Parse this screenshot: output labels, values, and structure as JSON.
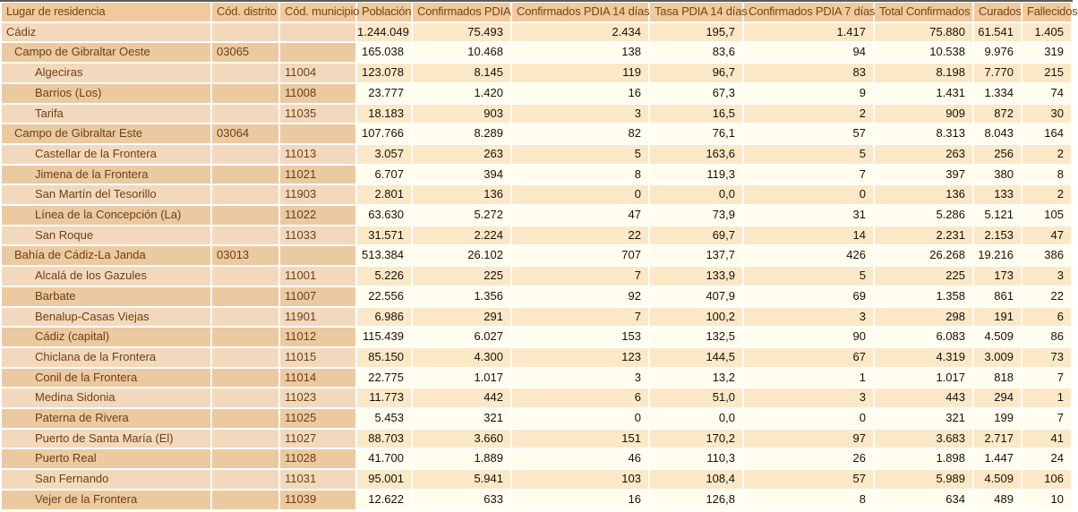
{
  "colors": {
    "top_border": "#5b5b58",
    "header_bg": "#f0ca9e",
    "header_text": "#774412",
    "label_row_dark": "#ebc9a1",
    "label_row_light": "#f2d9bd",
    "data_row_cream": "#fffdee",
    "data_row_peach": "#fae8c7",
    "label_text": "#6f3f14",
    "number_text": "#191008",
    "grid_white": "#ffffff"
  },
  "table": {
    "columns": [
      {
        "label": "Lugar de residencia"
      },
      {
        "label": "Cód. distrito"
      },
      {
        "label": "Cód. municipio"
      },
      {
        "label": "Población"
      },
      {
        "label": "Confirmados PDIA"
      },
      {
        "label": "Confirmados PDIA 14 días"
      },
      {
        "label": "Tasa PDIA 14 días"
      },
      {
        "label": "Confirmados PDIA 7 días"
      },
      {
        "label": "Total Confirmados"
      },
      {
        "label": "Curados"
      },
      {
        "label": "Fallecidos"
      }
    ],
    "rows": [
      {
        "name": "Cádiz",
        "indent": 0,
        "cod_distrito": "",
        "cod_municipio": "",
        "poblacion": "1.244.049",
        "confirmados_pdia": "75.493",
        "confirmados_pdia_14": "2.434",
        "tasa_pdia_14": "195,7",
        "confirmados_pdia_7": "1.417",
        "total_confirmados": "75.880",
        "curados": "61.541",
        "fallecidos": "1.405"
      },
      {
        "name": "Campo de Gibraltar Oeste",
        "indent": 1,
        "cod_distrito": "03065",
        "cod_municipio": "",
        "poblacion": "165.038",
        "confirmados_pdia": "10.468",
        "confirmados_pdia_14": "138",
        "tasa_pdia_14": "83,6",
        "confirmados_pdia_7": "94",
        "total_confirmados": "10.538",
        "curados": "9.976",
        "fallecidos": "319"
      },
      {
        "name": "Algeciras",
        "indent": 2,
        "cod_distrito": "",
        "cod_municipio": "11004",
        "poblacion": "123.078",
        "confirmados_pdia": "8.145",
        "confirmados_pdia_14": "119",
        "tasa_pdia_14": "96,7",
        "confirmados_pdia_7": "83",
        "total_confirmados": "8.198",
        "curados": "7.770",
        "fallecidos": "215"
      },
      {
        "name": "Barrios (Los)",
        "indent": 2,
        "cod_distrito": "",
        "cod_municipio": "11008",
        "poblacion": "23.777",
        "confirmados_pdia": "1.420",
        "confirmados_pdia_14": "16",
        "tasa_pdia_14": "67,3",
        "confirmados_pdia_7": "9",
        "total_confirmados": "1.431",
        "curados": "1.334",
        "fallecidos": "74"
      },
      {
        "name": "Tarifa",
        "indent": 2,
        "cod_distrito": "",
        "cod_municipio": "11035",
        "poblacion": "18.183",
        "confirmados_pdia": "903",
        "confirmados_pdia_14": "3",
        "tasa_pdia_14": "16,5",
        "confirmados_pdia_7": "2",
        "total_confirmados": "909",
        "curados": "872",
        "fallecidos": "30"
      },
      {
        "name": "Campo de Gibraltar Este",
        "indent": 1,
        "cod_distrito": "03064",
        "cod_municipio": "",
        "poblacion": "107.766",
        "confirmados_pdia": "8.289",
        "confirmados_pdia_14": "82",
        "tasa_pdia_14": "76,1",
        "confirmados_pdia_7": "57",
        "total_confirmados": "8.313",
        "curados": "8.043",
        "fallecidos": "164"
      },
      {
        "name": "Castellar de la Frontera",
        "indent": 2,
        "cod_distrito": "",
        "cod_municipio": "11013",
        "poblacion": "3.057",
        "confirmados_pdia": "263",
        "confirmados_pdia_14": "5",
        "tasa_pdia_14": "163,6",
        "confirmados_pdia_7": "5",
        "total_confirmados": "263",
        "curados": "256",
        "fallecidos": "2"
      },
      {
        "name": "Jimena de la Frontera",
        "indent": 2,
        "cod_distrito": "",
        "cod_municipio": "11021",
        "poblacion": "6.707",
        "confirmados_pdia": "394",
        "confirmados_pdia_14": "8",
        "tasa_pdia_14": "119,3",
        "confirmados_pdia_7": "7",
        "total_confirmados": "397",
        "curados": "380",
        "fallecidos": "8"
      },
      {
        "name": "San Martín del Tesorillo",
        "indent": 2,
        "cod_distrito": "",
        "cod_municipio": "11903",
        "poblacion": "2.801",
        "confirmados_pdia": "136",
        "confirmados_pdia_14": "0",
        "tasa_pdia_14": "0,0",
        "confirmados_pdia_7": "0",
        "total_confirmados": "136",
        "curados": "133",
        "fallecidos": "2"
      },
      {
        "name": "Línea de la Concepción (La)",
        "indent": 2,
        "cod_distrito": "",
        "cod_municipio": "11022",
        "poblacion": "63.630",
        "confirmados_pdia": "5.272",
        "confirmados_pdia_14": "47",
        "tasa_pdia_14": "73,9",
        "confirmados_pdia_7": "31",
        "total_confirmados": "5.286",
        "curados": "5.121",
        "fallecidos": "105"
      },
      {
        "name": "San Roque",
        "indent": 2,
        "cod_distrito": "",
        "cod_municipio": "11033",
        "poblacion": "31.571",
        "confirmados_pdia": "2.224",
        "confirmados_pdia_14": "22",
        "tasa_pdia_14": "69,7",
        "confirmados_pdia_7": "14",
        "total_confirmados": "2.231",
        "curados": "2.153",
        "fallecidos": "47"
      },
      {
        "name": "Bahía de Cádiz-La Janda",
        "indent": 1,
        "cod_distrito": "03013",
        "cod_municipio": "",
        "poblacion": "513.384",
        "confirmados_pdia": "26.102",
        "confirmados_pdia_14": "707",
        "tasa_pdia_14": "137,7",
        "confirmados_pdia_7": "426",
        "total_confirmados": "26.268",
        "curados": "19.216",
        "fallecidos": "386"
      },
      {
        "name": "Alcalá de los Gazules",
        "indent": 2,
        "cod_distrito": "",
        "cod_municipio": "11001",
        "poblacion": "5.226",
        "confirmados_pdia": "225",
        "confirmados_pdia_14": "7",
        "tasa_pdia_14": "133,9",
        "confirmados_pdia_7": "5",
        "total_confirmados": "225",
        "curados": "173",
        "fallecidos": "3"
      },
      {
        "name": "Barbate",
        "indent": 2,
        "cod_distrito": "",
        "cod_municipio": "11007",
        "poblacion": "22.556",
        "confirmados_pdia": "1.356",
        "confirmados_pdia_14": "92",
        "tasa_pdia_14": "407,9",
        "confirmados_pdia_7": "69",
        "total_confirmados": "1.358",
        "curados": "861",
        "fallecidos": "22"
      },
      {
        "name": "Benalup-Casas Viejas",
        "indent": 2,
        "cod_distrito": "",
        "cod_municipio": "11901",
        "poblacion": "6.986",
        "confirmados_pdia": "291",
        "confirmados_pdia_14": "7",
        "tasa_pdia_14": "100,2",
        "confirmados_pdia_7": "3",
        "total_confirmados": "298",
        "curados": "191",
        "fallecidos": "6"
      },
      {
        "name": "Cádiz (capital)",
        "indent": 2,
        "cod_distrito": "",
        "cod_municipio": "11012",
        "poblacion": "115.439",
        "confirmados_pdia": "6.027",
        "confirmados_pdia_14": "153",
        "tasa_pdia_14": "132,5",
        "confirmados_pdia_7": "90",
        "total_confirmados": "6.083",
        "curados": "4.509",
        "fallecidos": "86"
      },
      {
        "name": "Chiclana de la Frontera",
        "indent": 2,
        "cod_distrito": "",
        "cod_municipio": "11015",
        "poblacion": "85.150",
        "confirmados_pdia": "4.300",
        "confirmados_pdia_14": "123",
        "tasa_pdia_14": "144,5",
        "confirmados_pdia_7": "67",
        "total_confirmados": "4.319",
        "curados": "3.009",
        "fallecidos": "73"
      },
      {
        "name": "Conil de la Frontera",
        "indent": 2,
        "cod_distrito": "",
        "cod_municipio": "11014",
        "poblacion": "22.775",
        "confirmados_pdia": "1.017",
        "confirmados_pdia_14": "3",
        "tasa_pdia_14": "13,2",
        "confirmados_pdia_7": "1",
        "total_confirmados": "1.017",
        "curados": "818",
        "fallecidos": "7"
      },
      {
        "name": "Medina Sidonia",
        "indent": 2,
        "cod_distrito": "",
        "cod_municipio": "11023",
        "poblacion": "11.773",
        "confirmados_pdia": "442",
        "confirmados_pdia_14": "6",
        "tasa_pdia_14": "51,0",
        "confirmados_pdia_7": "3",
        "total_confirmados": "443",
        "curados": "294",
        "fallecidos": "1"
      },
      {
        "name": "Paterna de Rivera",
        "indent": 2,
        "cod_distrito": "",
        "cod_municipio": "11025",
        "poblacion": "5.453",
        "confirmados_pdia": "321",
        "confirmados_pdia_14": "0",
        "tasa_pdia_14": "0,0",
        "confirmados_pdia_7": "0",
        "total_confirmados": "321",
        "curados": "199",
        "fallecidos": "7"
      },
      {
        "name": "Puerto de Santa María (El)",
        "indent": 2,
        "cod_distrito": "",
        "cod_municipio": "11027",
        "poblacion": "88.703",
        "confirmados_pdia": "3.660",
        "confirmados_pdia_14": "151",
        "tasa_pdia_14": "170,2",
        "confirmados_pdia_7": "97",
        "total_confirmados": "3.683",
        "curados": "2.717",
        "fallecidos": "41"
      },
      {
        "name": "Puerto Real",
        "indent": 2,
        "cod_distrito": "",
        "cod_municipio": "11028",
        "poblacion": "41.700",
        "confirmados_pdia": "1.889",
        "confirmados_pdia_14": "46",
        "tasa_pdia_14": "110,3",
        "confirmados_pdia_7": "26",
        "total_confirmados": "1.898",
        "curados": "1.447",
        "fallecidos": "24"
      },
      {
        "name": "San Fernando",
        "indent": 2,
        "cod_distrito": "",
        "cod_municipio": "11031",
        "poblacion": "95.001",
        "confirmados_pdia": "5.941",
        "confirmados_pdia_14": "103",
        "tasa_pdia_14": "108,4",
        "confirmados_pdia_7": "57",
        "total_confirmados": "5.989",
        "curados": "4.509",
        "fallecidos": "106"
      },
      {
        "name": "Vejer de la Frontera",
        "indent": 2,
        "cod_distrito": "",
        "cod_municipio": "11039",
        "poblacion": "12.622",
        "confirmados_pdia": "633",
        "confirmados_pdia_14": "16",
        "tasa_pdia_14": "126,8",
        "confirmados_pdia_7": "8",
        "total_confirmados": "634",
        "curados": "489",
        "fallecidos": "10"
      }
    ]
  }
}
